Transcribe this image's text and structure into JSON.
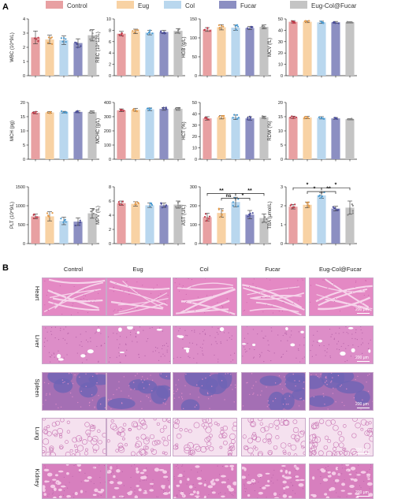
{
  "figure": {
    "panel_a_label": "A",
    "panel_b_label": "B"
  },
  "legend": [
    {
      "name": "Control",
      "color": "#e8a0a2"
    },
    {
      "name": "Eug",
      "color": "#f8d2a4"
    },
    {
      "name": "Col",
      "color": "#b9d7ee"
    },
    {
      "name": "Fucar",
      "color": "#8c8fc2"
    },
    {
      "name": "Eug-Col@Fucar",
      "color": "#c4c4c4"
    }
  ],
  "chart_data": [
    {
      "type": "bar",
      "id": "wbc",
      "ylabel": "WBC (10^9/L)",
      "ylim": [
        0,
        4
      ],
      "yticks": [
        "0",
        "1",
        "2",
        "3",
        "4"
      ],
      "categories": [
        "Control",
        "Eug",
        "Col",
        "Fucar",
        "Eug-Col@Fucar"
      ],
      "values": [
        2.7,
        2.55,
        2.5,
        2.3,
        2.85
      ],
      "errors": [
        0.45,
        0.3,
        0.3,
        0.3,
        0.4
      ]
    },
    {
      "type": "bar",
      "id": "rbc",
      "ylabel": "RBC (10^12/L)",
      "ylim": [
        0,
        10
      ],
      "yticks": [
        "0",
        "2",
        "4",
        "6",
        "8",
        "10"
      ],
      "categories": [
        "Control",
        "Eug",
        "Col",
        "Fucar",
        "Eug-Col@Fucar"
      ],
      "values": [
        7.4,
        7.8,
        7.6,
        7.7,
        7.9
      ],
      "errors": [
        0.4,
        0.4,
        0.4,
        0.3,
        0.4
      ]
    },
    {
      "type": "bar",
      "id": "hgb",
      "ylabel": "HGB (g/L)",
      "ylim": [
        0,
        150
      ],
      "yticks": [
        "0",
        "50",
        "100",
        "150"
      ],
      "categories": [
        "Control",
        "Eug",
        "Col",
        "Fucar",
        "Eug-Col@Fucar"
      ],
      "values": [
        122,
        128,
        127,
        126,
        129
      ],
      "errors": [
        5,
        7,
        7,
        4,
        5
      ]
    },
    {
      "type": "bar",
      "id": "mcv",
      "ylabel": "MCV (fL)",
      "ylim": [
        0,
        50
      ],
      "yticks": [
        "0",
        "10",
        "20",
        "30",
        "40",
        "50"
      ],
      "categories": [
        "Control",
        "Eug",
        "Col",
        "Fucar",
        "Eug-Col@Fucar"
      ],
      "values": [
        47.5,
        47.5,
        47,
        47,
        47
      ],
      "errors": [
        1,
        0.8,
        1,
        0.8,
        0.5
      ]
    },
    {
      "type": "bar",
      "id": "mch",
      "ylabel": "MCH (pg)",
      "ylim": [
        0,
        20
      ],
      "yticks": [
        "0",
        "5",
        "10",
        "15",
        "20"
      ],
      "categories": [
        "Control",
        "Eug",
        "Col",
        "Fucar",
        "Eug-Col@Fucar"
      ],
      "values": [
        16.4,
        16.5,
        16.6,
        16.7,
        16.6
      ],
      "errors": [
        0.4,
        0.3,
        0.3,
        0.3,
        0.4
      ]
    },
    {
      "type": "bar",
      "id": "mchc",
      "ylabel": "MCHC (g/L)",
      "ylim": [
        0,
        400
      ],
      "yticks": [
        "0",
        "100",
        "200",
        "300",
        "400"
      ],
      "categories": [
        "Control",
        "Eug",
        "Col",
        "Fucar",
        "Eug-Col@Fucar"
      ],
      "values": [
        345,
        348,
        352,
        355,
        355
      ],
      "errors": [
        10,
        10,
        10,
        10,
        10
      ]
    },
    {
      "type": "bar",
      "id": "hct",
      "ylabel": "HCT (%)",
      "ylim": [
        0,
        50
      ],
      "yticks": [
        "0",
        "10",
        "20",
        "30",
        "40",
        "50"
      ],
      "categories": [
        "Control",
        "Eug",
        "Col",
        "Fucar",
        "Eug-Col@Fucar"
      ],
      "values": [
        36,
        37,
        37,
        36,
        37
      ],
      "errors": [
        1.5,
        1.5,
        2,
        1.5,
        1
      ]
    },
    {
      "type": "bar",
      "id": "rdw",
      "ylabel": "RDW (%)",
      "ylim": [
        0,
        20
      ],
      "yticks": [
        "0",
        "5",
        "10",
        "15",
        "20"
      ],
      "categories": [
        "Control",
        "Eug",
        "Col",
        "Fucar",
        "Eug-Col@Fucar"
      ],
      "values": [
        14.8,
        14.7,
        14.6,
        14.4,
        14.1
      ],
      "errors": [
        0.4,
        0.4,
        0.4,
        0.3,
        0.2
      ]
    },
    {
      "type": "bar",
      "id": "plt",
      "ylabel": "PLT (10^9/L)",
      "ylim": [
        0,
        1500
      ],
      "yticks": [
        "0",
        "500",
        "1000",
        "1500"
      ],
      "categories": [
        "Control",
        "Eug",
        "Col",
        "Fucar",
        "Eug-Col@Fucar"
      ],
      "values": [
        720,
        720,
        600,
        580,
        800
      ],
      "errors": [
        60,
        120,
        100,
        100,
        130
      ]
    },
    {
      "type": "bar",
      "id": "mpv",
      "ylabel": "MPV (fL)",
      "ylim": [
        0,
        8
      ],
      "yticks": [
        "0",
        "2",
        "4",
        "6",
        "8"
      ],
      "categories": [
        "Control",
        "Eug",
        "Col",
        "Fucar",
        "Eug-Col@Fucar"
      ],
      "values": [
        5.7,
        5.6,
        5.4,
        5.4,
        5.5
      ],
      "errors": [
        0.3,
        0.3,
        0.3,
        0.3,
        0.5
      ]
    },
    {
      "type": "bar",
      "id": "ast",
      "ylabel": "AST (U/L)",
      "ylim": [
        0,
        300
      ],
      "yticks": [
        "0",
        "100",
        "200",
        "300"
      ],
      "categories": [
        "Control",
        "Eug",
        "Col",
        "Fucar",
        "Eug-Col@Fucar"
      ],
      "values": [
        140,
        162,
        220,
        153,
        135
      ],
      "errors": [
        20,
        22,
        25,
        22,
        22
      ],
      "annotations": [
        {
          "from": 0,
          "to": 2,
          "y": 265,
          "text": "**"
        },
        {
          "from": 1,
          "to": 2,
          "y": 240,
          "text": "ns"
        },
        {
          "from": 2,
          "to": 3,
          "y": 240,
          "text": "*"
        },
        {
          "from": 2,
          "to": 4,
          "y": 265,
          "text": "**"
        }
      ]
    },
    {
      "type": "bar",
      "id": "tba",
      "ylabel": "TBA (μmol/L)",
      "ylim": [
        0,
        3
      ],
      "yticks": [
        "0",
        "1",
        "2",
        "3"
      ],
      "categories": [
        "Control",
        "Eug",
        "Col",
        "Fucar",
        "Eug-Col@Fucar"
      ],
      "values": [
        1.95,
        2.05,
        2.55,
        1.85,
        1.9
      ],
      "errors": [
        0.12,
        0.15,
        0.15,
        0.12,
        0.35
      ],
      "annotations": [
        {
          "from": 0,
          "to": 2,
          "y": 2.95,
          "text": "*"
        },
        {
          "from": 1,
          "to": 2,
          "y": 2.75,
          "text": "*"
        },
        {
          "from": 2,
          "to": 3,
          "y": 2.75,
          "text": "**"
        },
        {
          "from": 2,
          "to": 4,
          "y": 2.95,
          "text": "*"
        }
      ]
    }
  ],
  "histology": {
    "columns": [
      "Control",
      "Eug",
      "Col",
      "Fucar",
      "Eug-Col@Fucar"
    ],
    "organs": [
      "Heart",
      "Liver",
      "Spleen",
      "Lung",
      "Kidney"
    ],
    "scale_label": "200 μm",
    "tissue_colors": {
      "Heart": {
        "base": "#e489c4",
        "accent": "#c55aa5",
        "lines": "#f6d3ea"
      },
      "Liver": {
        "base": "#dd8ec8",
        "accent": "#b765a9",
        "lines": "#ffffff"
      },
      "Spleen": {
        "base": "#a46fb4",
        "accent": "#6e64b5",
        "lines": "#d989c6"
      },
      "Lung": {
        "base": "#f5e1ef",
        "accent": "#c978b5",
        "lines": "#ffffff"
      },
      "Kidney": {
        "base": "#d77fbe",
        "accent": "#b25aa3",
        "lines": "#f5cbe7"
      }
    }
  }
}
